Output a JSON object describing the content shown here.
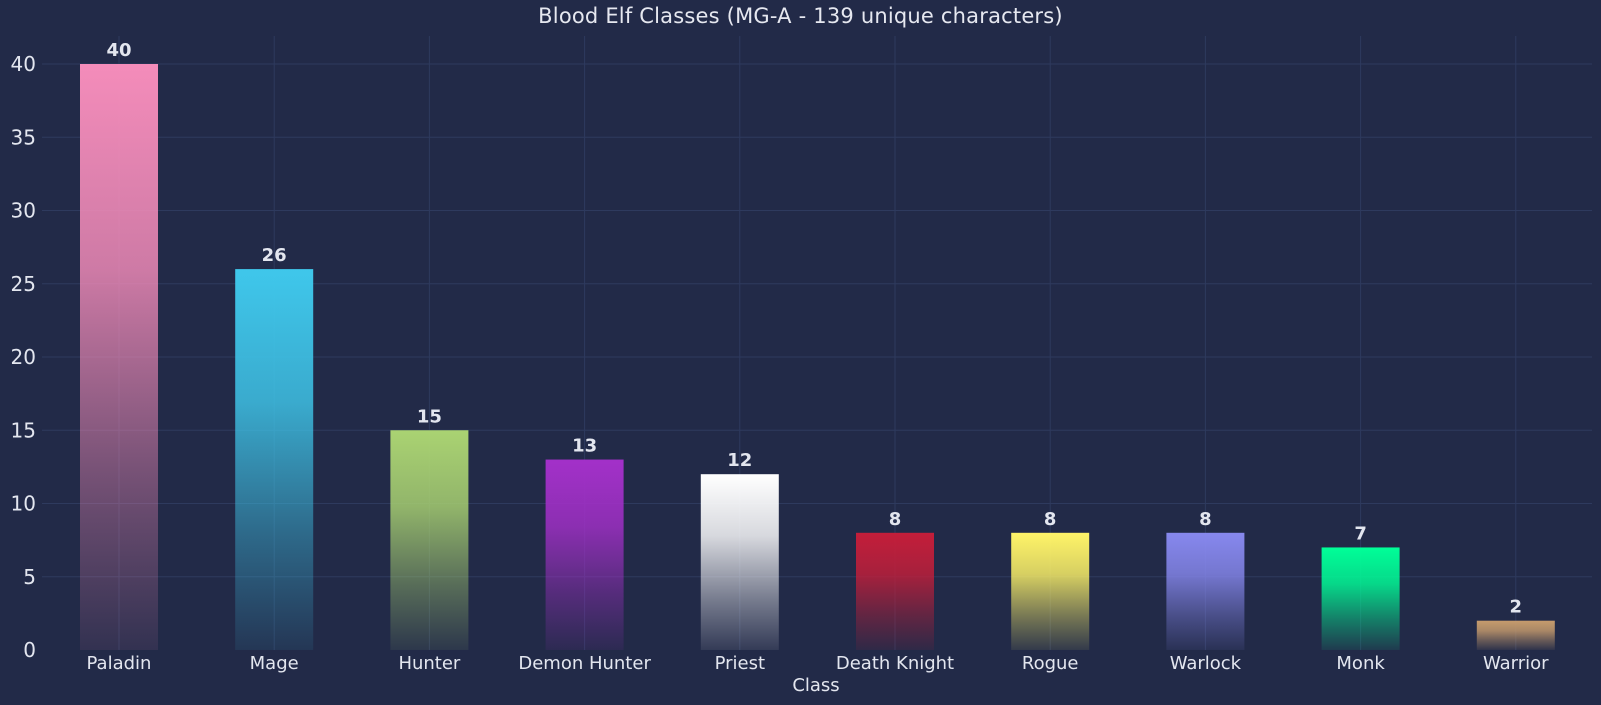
{
  "chart_data": {
    "type": "bar",
    "title": "Blood Elf Classes (MG-A - 139 unique characters)",
    "xlabel": "Class",
    "ylabel": "",
    "ylim": [
      0,
      42
    ],
    "yticks": [
      0,
      5,
      10,
      15,
      20,
      25,
      30,
      35,
      40
    ],
    "grid": true,
    "legend": "none",
    "categories": [
      "Paladin",
      "Mage",
      "Hunter",
      "Demon Hunter",
      "Priest",
      "Death Knight",
      "Rogue",
      "Warlock",
      "Monk",
      "Warrior"
    ],
    "values": [
      40,
      26,
      15,
      13,
      12,
      8,
      8,
      8,
      7,
      2
    ],
    "colors": [
      "#F48CBA",
      "#3FC7EB",
      "#AAD372",
      "#A330C9",
      "#FFFFFF",
      "#C41E3A",
      "#FFF468",
      "#8788EE",
      "#00FF98",
      "#C69B6D"
    ],
    "background": "#222a48",
    "gridColor": "#2e3a5e",
    "textColor": "#e3e6ef"
  }
}
